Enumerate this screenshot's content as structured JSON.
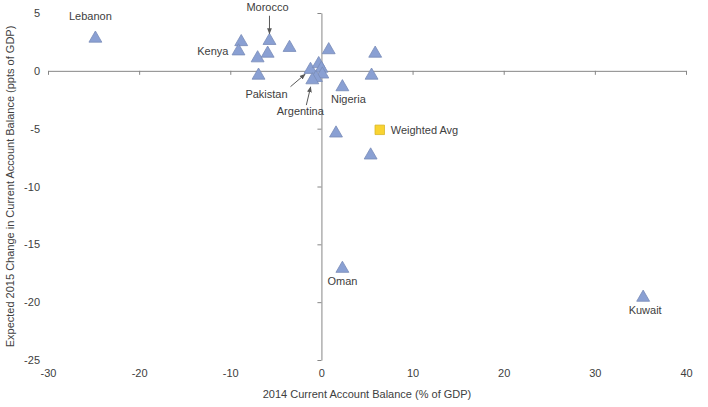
{
  "chart_data": {
    "type": "scatter",
    "x_label": "2014 Current Account Balance (% of GDP)",
    "y_label": "Expected 2015 Change in Current Account Balance (ppts of GDP)",
    "xlim": [
      -30,
      40
    ],
    "xticks": [
      -30,
      -20,
      -10,
      0,
      10,
      20,
      30,
      40
    ],
    "ylim": [
      -25,
      5
    ],
    "yticks": [
      -25,
      -20,
      -15,
      -10,
      -5,
      0,
      5
    ],
    "grid": false,
    "series": [
      {
        "marker": "triangle",
        "color": "#8aa0d3",
        "x": [
          -24.8,
          -8.8,
          -9.1,
          -5.7,
          -3.5,
          -5.9,
          -7.0,
          -6.9,
          0.8,
          5.9,
          5.5,
          2.3,
          -1.2,
          -0.3,
          0.0,
          0.1,
          -0.6,
          -1.0,
          1.6,
          5.4,
          2.3,
          35.3
        ],
        "values": [
          2.8,
          2.5,
          1.7,
          2.6,
          2.0,
          1.5,
          1.1,
          -0.4,
          1.8,
          1.5,
          -0.4,
          -1.4,
          0.1,
          0.6,
          0.2,
          -0.3,
          -0.6,
          -0.8,
          -5.4,
          -7.3,
          -17.1,
          -19.6
        ],
        "point_labels": [
          "Lebanon",
          null,
          "Kenya",
          "Morocco",
          null,
          null,
          null,
          null,
          null,
          null,
          null,
          "Nigeria",
          "Pakistan",
          null,
          null,
          null,
          null,
          "Argentina",
          null,
          null,
          "Oman",
          "Kuwait"
        ]
      },
      {
        "name": "Weighted Avg",
        "marker": "square",
        "color": "#f9d331",
        "x": [
          6.4
        ],
        "values": [
          -5.1
        ]
      }
    ]
  }
}
